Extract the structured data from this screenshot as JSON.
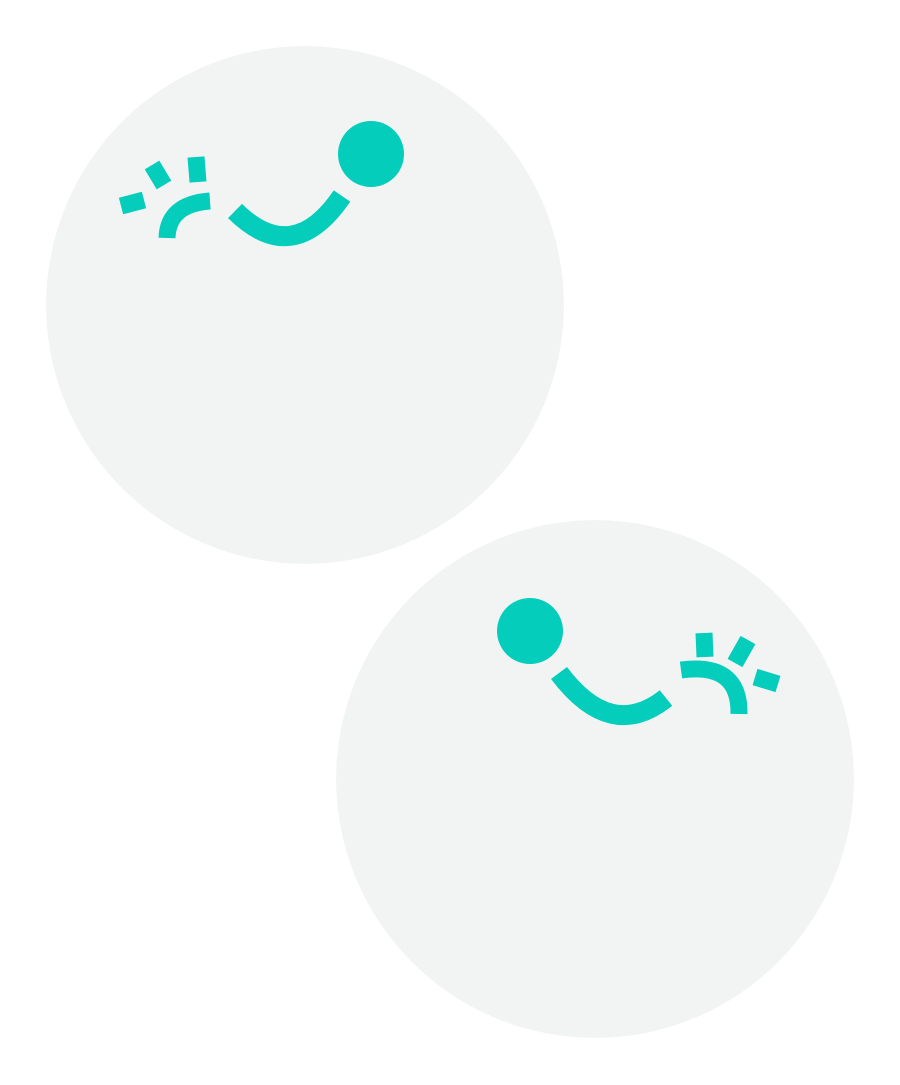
{
  "colors": {
    "background": "#ffffff",
    "circle_fill": "#f2f4f4",
    "logo_teal": "#05cdbb"
  },
  "icons": {
    "logo": "smile-sparkle-logo-icon"
  },
  "badges": [
    {
      "name": "badge-top",
      "orientation": "normal"
    },
    {
      "name": "badge-bottom",
      "orientation": "mirrored"
    }
  ]
}
